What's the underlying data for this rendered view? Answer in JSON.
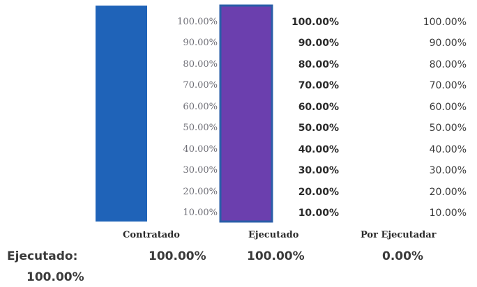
{
  "chart_data": {
    "type": "bar",
    "categories": [
      "Contratado",
      "Ejecutado",
      "Por Ejecutadar"
    ],
    "values": [
      100,
      100,
      0
    ],
    "value_labels": [
      "100.00%",
      "100.00%",
      "0.00%"
    ],
    "y_ticks": [
      "10.00%",
      "20.00%",
      "30.00%",
      "40.00%",
      "50.00%",
      "60.00%",
      "70.00%",
      "80.00%",
      "90.00%",
      "100.00%"
    ],
    "ylim": [
      0,
      100
    ],
    "colors": [
      "#1f63b8",
      "#6b3fae"
    ],
    "summary_label": "Ejecutado:",
    "summary_value": "100.00%"
  }
}
